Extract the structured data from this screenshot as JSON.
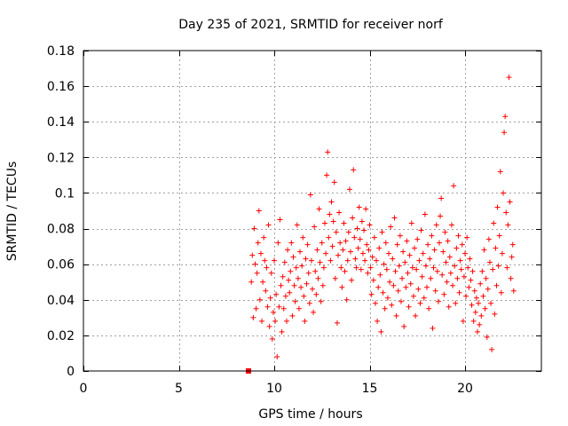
{
  "chart_data": {
    "type": "scatter",
    "title": "Day 235 of 2021, SRMTID for receiver norf",
    "xlabel": "GPS time / hours",
    "ylabel": "SRMTID / TECUs",
    "xlim": [
      0,
      24
    ],
    "ylim": [
      0,
      0.18
    ],
    "xticks": [
      0,
      5,
      10,
      15,
      20
    ],
    "yticks": [
      0,
      0.02,
      0.04,
      0.06,
      0.08,
      0.1,
      0.12,
      0.14,
      0.16,
      0.18
    ],
    "xtick_labels": [
      "0",
      "5",
      "10",
      "15",
      "20"
    ],
    "ytick_labels": [
      "0",
      "0.02",
      "0.04",
      "0.06",
      "0.08",
      "0.1",
      "0.12",
      "0.14",
      "0.16",
      "0.18"
    ],
    "grid": true,
    "marker": "+",
    "color": "#ff0000",
    "series": [
      {
        "outlier": [
          8.65,
          0.0
        ],
        "points": [
          [
            8.8,
            0.05
          ],
          [
            8.85,
            0.065
          ],
          [
            8.9,
            0.03
          ],
          [
            8.95,
            0.08
          ],
          [
            9.0,
            0.06
          ],
          [
            9.05,
            0.035
          ],
          [
            9.1,
            0.055
          ],
          [
            9.15,
            0.072
          ],
          [
            9.2,
            0.09
          ],
          [
            9.25,
            0.04
          ],
          [
            9.3,
            0.066
          ],
          [
            9.35,
            0.028
          ],
          [
            9.4,
            0.05
          ],
          [
            9.45,
            0.075
          ],
          [
            9.5,
            0.062
          ],
          [
            9.55,
            0.045
          ],
          [
            9.6,
            0.058
          ],
          [
            9.65,
            0.036
          ],
          [
            9.7,
            0.082
          ],
          [
            9.75,
            0.025
          ],
          [
            9.8,
            0.041
          ],
          [
            9.85,
            0.055
          ],
          [
            9.9,
            0.018
          ],
          [
            9.95,
            0.033
          ],
          [
            10.0,
            0.062
          ],
          [
            10.05,
            0.028
          ],
          [
            10.1,
            0.043
          ],
          [
            10.15,
            0.008
          ],
          [
            10.2,
            0.072
          ],
          [
            10.25,
            0.036
          ],
          [
            10.3,
            0.085
          ],
          [
            10.35,
            0.048
          ],
          [
            10.4,
            0.022
          ],
          [
            10.45,
            0.053
          ],
          [
            10.5,
            0.035
          ],
          [
            10.55,
            0.061
          ],
          [
            10.6,
            0.042
          ],
          [
            10.65,
            0.028
          ],
          [
            10.7,
            0.068
          ],
          [
            10.75,
            0.051
          ],
          [
            10.8,
            0.044
          ],
          [
            10.85,
            0.056
          ],
          [
            10.9,
            0.072
          ],
          [
            10.95,
            0.031
          ],
          [
            11.0,
            0.064
          ],
          [
            11.05,
            0.048
          ],
          [
            11.1,
            0.039
          ],
          [
            11.15,
            0.058
          ],
          [
            11.2,
            0.082
          ],
          [
            11.25,
            0.052
          ],
          [
            11.3,
            0.035
          ],
          [
            11.35,
            0.067
          ],
          [
            11.4,
            0.047
          ],
          [
            11.45,
            0.059
          ],
          [
            11.5,
            0.075
          ],
          [
            11.55,
            0.042
          ],
          [
            11.6,
            0.028
          ],
          [
            11.65,
            0.063
          ],
          [
            11.7,
            0.049
          ],
          [
            11.75,
            0.071
          ],
          [
            11.8,
            0.055
          ],
          [
            11.85,
            0.038
          ],
          [
            11.9,
            0.099
          ],
          [
            11.95,
            0.062
          ],
          [
            12.0,
            0.046
          ],
          [
            12.05,
            0.033
          ],
          [
            12.1,
            0.081
          ],
          [
            12.15,
            0.056
          ],
          [
            12.2,
            0.043
          ],
          [
            12.25,
            0.068
          ],
          [
            12.3,
            0.052
          ],
          [
            12.35,
            0.091
          ],
          [
            12.4,
            0.061
          ],
          [
            12.45,
            0.039
          ],
          [
            12.5,
            0.072
          ],
          [
            12.55,
            0.048
          ],
          [
            12.6,
            0.058
          ],
          [
            12.65,
            0.083
          ],
          [
            12.7,
            0.066
          ],
          [
            12.75,
            0.11
          ],
          [
            12.8,
            0.123
          ],
          [
            12.85,
            0.075
          ],
          [
            12.9,
            0.088
          ],
          [
            12.95,
            0.062
          ],
          [
            13.0,
            0.095
          ],
          [
            13.05,
            0.07
          ],
          [
            13.1,
            0.084
          ],
          [
            13.15,
            0.106
          ],
          [
            13.2,
            0.052
          ],
          [
            13.25,
            0.078
          ],
          [
            13.3,
            0.027
          ],
          [
            13.35,
            0.065
          ],
          [
            13.4,
            0.089
          ],
          [
            13.45,
            0.072
          ],
          [
            13.5,
            0.058
          ],
          [
            13.55,
            0.047
          ],
          [
            13.6,
            0.068
          ],
          [
            13.65,
            0.083
          ],
          [
            13.7,
            0.056
          ],
          [
            13.75,
            0.073
          ],
          [
            13.8,
            0.04
          ],
          [
            13.85,
            0.062
          ],
          [
            13.9,
            0.078
          ],
          [
            13.95,
            0.102
          ],
          [
            14.0,
            0.067
          ],
          [
            14.05,
            0.051
          ],
          [
            14.1,
            0.086
          ],
          [
            14.15,
            0.113
          ],
          [
            14.2,
            0.075
          ],
          [
            14.25,
            0.063
          ],
          [
            14.3,
            0.058
          ],
          [
            14.35,
            0.08
          ],
          [
            14.4,
            0.069
          ],
          [
            14.45,
            0.092
          ],
          [
            14.5,
            0.074
          ],
          [
            14.55,
            0.057
          ],
          [
            14.6,
            0.084
          ],
          [
            14.65,
            0.066
          ],
          [
            14.7,
            0.079
          ],
          [
            14.75,
            0.062
          ],
          [
            14.8,
            0.091
          ],
          [
            14.85,
            0.071
          ],
          [
            14.9,
            0.055
          ],
          [
            14.95,
            0.068
          ],
          [
            15.0,
            0.082
          ],
          [
            15.05,
            0.058
          ],
          [
            15.1,
            0.043
          ],
          [
            15.15,
            0.064
          ],
          [
            15.2,
            0.051
          ],
          [
            15.25,
            0.075
          ],
          [
            15.3,
            0.038
          ],
          [
            15.35,
            0.062
          ],
          [
            15.4,
            0.028
          ],
          [
            15.45,
            0.047
          ],
          [
            15.5,
            0.069
          ],
          [
            15.55,
            0.054
          ],
          [
            15.6,
            0.022
          ],
          [
            15.65,
            0.078
          ],
          [
            15.7,
            0.044
          ],
          [
            15.75,
            0.06
          ],
          [
            15.8,
            0.035
          ],
          [
            15.85,
            0.072
          ],
          [
            15.9,
            0.057
          ],
          [
            15.95,
            0.041
          ],
          [
            16.0,
            0.066
          ],
          [
            16.05,
            0.05
          ],
          [
            16.1,
            0.081
          ],
          [
            16.15,
            0.037
          ],
          [
            16.2,
            0.063
          ],
          [
            16.25,
            0.048
          ],
          [
            16.3,
            0.086
          ],
          [
            16.35,
            0.056
          ],
          [
            16.4,
            0.031
          ],
          [
            16.45,
            0.071
          ],
          [
            16.5,
            0.045
          ],
          [
            16.55,
            0.059
          ],
          [
            16.6,
            0.076
          ],
          [
            16.65,
            0.039
          ],
          [
            16.7,
            0.052
          ],
          [
            16.75,
            0.067
          ],
          [
            16.8,
            0.025
          ],
          [
            16.85,
            0.061
          ],
          [
            16.9,
            0.047
          ],
          [
            16.95,
            0.073
          ],
          [
            17.0,
            0.055
          ],
          [
            17.05,
            0.036
          ],
          [
            17.1,
            0.065
          ],
          [
            17.15,
            0.049
          ],
          [
            17.2,
            0.083
          ],
          [
            17.25,
            0.058
          ],
          [
            17.3,
            0.042
          ],
          [
            17.35,
            0.069
          ],
          [
            17.4,
            0.031
          ],
          [
            17.45,
            0.057
          ],
          [
            17.5,
            0.074
          ],
          [
            17.55,
            0.046
          ],
          [
            17.6,
            0.062
          ],
          [
            17.65,
            0.038
          ],
          [
            17.7,
            0.079
          ],
          [
            17.75,
            0.053
          ],
          [
            17.8,
            0.066
          ],
          [
            17.85,
            0.041
          ],
          [
            17.9,
            0.088
          ],
          [
            17.95,
            0.059
          ],
          [
            18.0,
            0.047
          ],
          [
            18.05,
            0.071
          ],
          [
            18.1,
            0.035
          ],
          [
            18.15,
            0.063
          ],
          [
            18.2,
            0.052
          ],
          [
            18.25,
            0.076
          ],
          [
            18.3,
            0.024
          ],
          [
            18.35,
            0.058
          ],
          [
            18.4,
            0.068
          ],
          [
            18.45,
            0.045
          ],
          [
            18.5,
            0.082
          ],
          [
            18.55,
            0.056
          ],
          [
            18.6,
            0.039
          ],
          [
            18.65,
            0.072
          ],
          [
            18.7,
            0.087
          ],
          [
            18.75,
            0.097
          ],
          [
            18.8,
            0.054
          ],
          [
            18.85,
            0.067
          ],
          [
            18.9,
            0.043
          ],
          [
            18.95,
            0.078
          ],
          [
            19.0,
            0.061
          ],
          [
            19.05,
            0.05
          ],
          [
            19.1,
            0.073
          ],
          [
            19.15,
            0.036
          ],
          [
            19.2,
            0.064
          ],
          [
            19.25,
            0.055
          ],
          [
            19.3,
            0.082
          ],
          [
            19.35,
            0.048
          ],
          [
            19.4,
            0.104
          ],
          [
            19.45,
            0.059
          ],
          [
            19.5,
            0.038
          ],
          [
            19.55,
            0.069
          ],
          [
            19.6,
            0.052
          ],
          [
            19.65,
            0.076
          ],
          [
            19.7,
            0.044
          ],
          [
            19.75,
            0.062
          ],
          [
            19.8,
            0.057
          ],
          [
            19.85,
            0.071
          ],
          [
            19.9,
            0.028
          ],
          [
            19.95,
            0.053
          ],
          [
            20.0,
            0.066
          ],
          [
            20.05,
            0.042
          ],
          [
            20.1,
            0.075
          ],
          [
            20.15,
            0.058
          ],
          [
            20.2,
            0.047
          ],
          [
            20.25,
            0.063
          ],
          [
            20.3,
            0.051
          ],
          [
            20.35,
            0.037
          ],
          [
            20.4,
            0.056
          ],
          [
            20.45,
            0.028
          ],
          [
            20.5,
            0.045
          ],
          [
            20.55,
            0.033
          ],
          [
            20.6,
            0.041
          ],
          [
            20.65,
            0.022
          ],
          [
            20.7,
            0.038
          ],
          [
            20.75,
            0.026
          ],
          [
            20.8,
            0.049
          ],
          [
            20.85,
            0.031
          ],
          [
            20.9,
            0.056
          ],
          [
            20.95,
            0.042
          ],
          [
            21.0,
            0.068
          ],
          [
            21.05,
            0.035
          ],
          [
            21.1,
            0.052
          ],
          [
            21.15,
            0.019
          ],
          [
            21.2,
            0.046
          ],
          [
            21.25,
            0.074
          ],
          [
            21.3,
            0.061
          ],
          [
            21.35,
            0.038
          ],
          [
            21.4,
            0.012
          ],
          [
            21.45,
            0.057
          ],
          [
            21.5,
            0.083
          ],
          [
            21.55,
            0.032
          ],
          [
            21.6,
            0.069
          ],
          [
            21.65,
            0.048
          ],
          [
            21.7,
            0.092
          ],
          [
            21.75,
            0.059
          ],
          [
            21.8,
            0.076
          ],
          [
            21.85,
            0.112
          ],
          [
            21.9,
            0.044
          ],
          [
            21.95,
            0.066
          ],
          [
            22.0,
            0.1
          ],
          [
            22.05,
            0.134
          ],
          [
            22.1,
            0.143
          ],
          [
            22.15,
            0.089
          ],
          [
            22.2,
            0.058
          ],
          [
            22.25,
            0.082
          ],
          [
            22.3,
            0.165
          ],
          [
            22.35,
            0.095
          ],
          [
            22.4,
            0.052
          ],
          [
            22.45,
            0.064
          ],
          [
            22.5,
            0.071
          ],
          [
            22.55,
            0.045
          ]
        ]
      }
    ]
  }
}
